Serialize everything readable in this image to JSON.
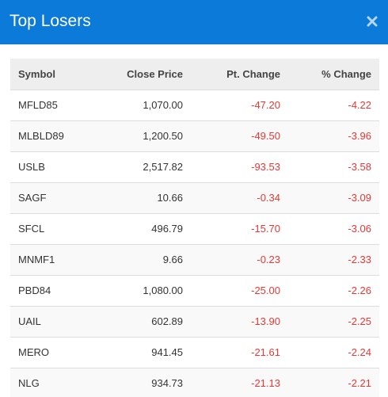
{
  "modal": {
    "title": "Top Losers",
    "close_icon": "close-icon"
  },
  "table": {
    "headers": {
      "symbol": "Symbol",
      "close_price": "Close Price",
      "pt_change": "Pt. Change",
      "pct_change": "% Change"
    },
    "rows": [
      {
        "symbol": "MFLD85",
        "close_price": "1,070.00",
        "pt_change": "-47.20",
        "pct_change": "-4.22"
      },
      {
        "symbol": "MLBLD89",
        "close_price": "1,200.50",
        "pt_change": "-49.50",
        "pct_change": "-3.96"
      },
      {
        "symbol": "USLB",
        "close_price": "2,517.82",
        "pt_change": "-93.53",
        "pct_change": "-3.58"
      },
      {
        "symbol": "SAGF",
        "close_price": "10.66",
        "pt_change": "-0.34",
        "pct_change": "-3.09"
      },
      {
        "symbol": "SFCL",
        "close_price": "496.79",
        "pt_change": "-15.70",
        "pct_change": "-3.06"
      },
      {
        "symbol": "MNMF1",
        "close_price": "9.66",
        "pt_change": "-0.23",
        "pct_change": "-2.33"
      },
      {
        "symbol": "PBD84",
        "close_price": "1,080.00",
        "pt_change": "-25.00",
        "pct_change": "-2.26"
      },
      {
        "symbol": "UAIL",
        "close_price": "602.89",
        "pt_change": "-13.90",
        "pct_change": "-2.25"
      },
      {
        "symbol": "MERO",
        "close_price": "941.45",
        "pt_change": "-21.61",
        "pct_change": "-2.24"
      },
      {
        "symbol": "NLG",
        "close_price": "934.73",
        "pt_change": "-21.13",
        "pct_change": "-2.21"
      }
    ]
  },
  "colors": {
    "header_bg": "#0c7ad8",
    "negative": "#e53935"
  }
}
